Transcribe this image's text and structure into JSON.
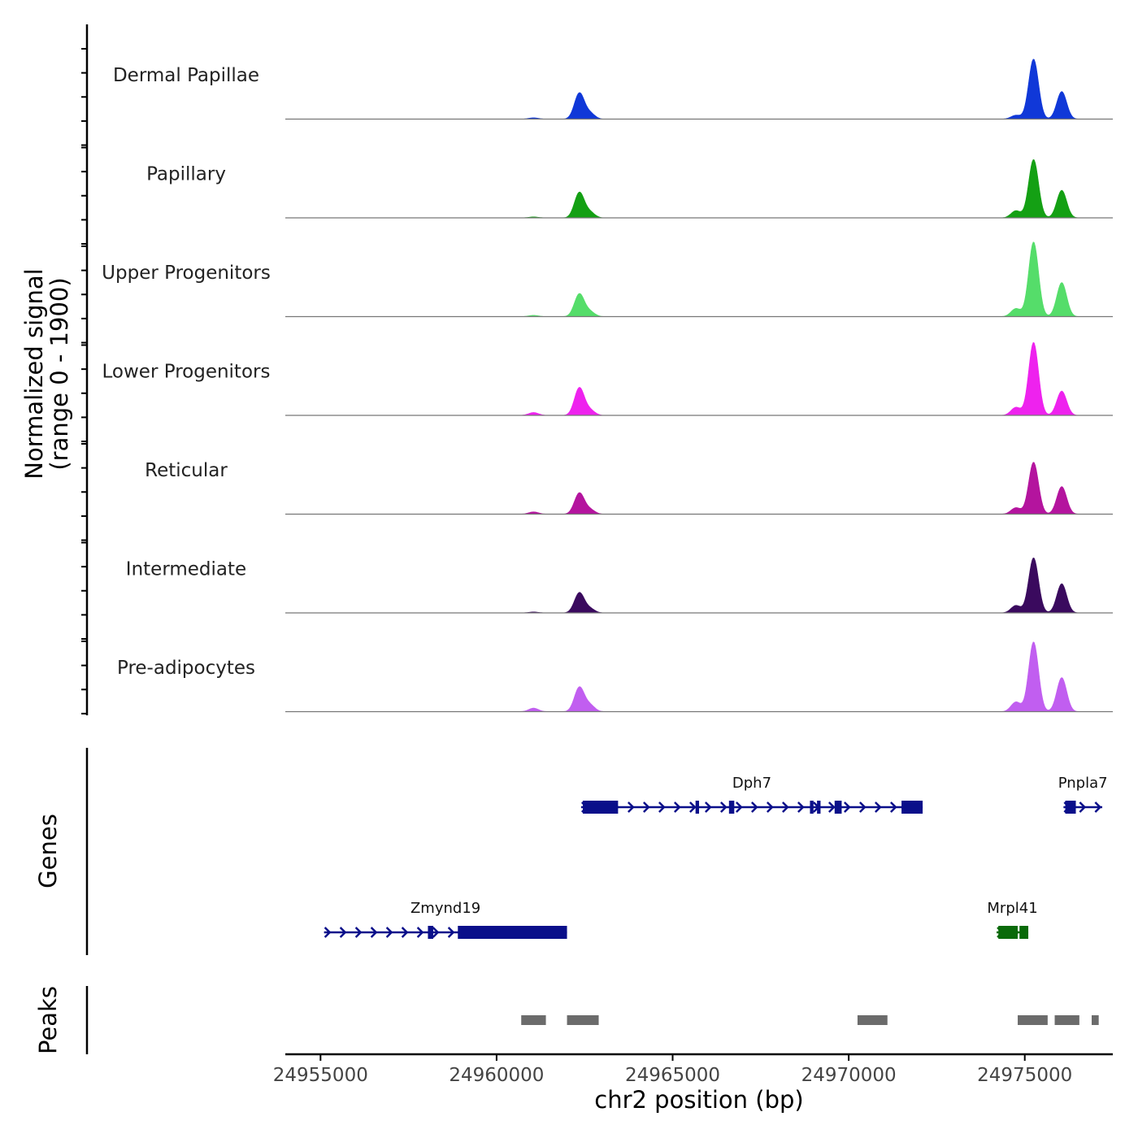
{
  "chart_data": {
    "type": "area",
    "title": "",
    "xlabel": "chr2 position (bp)",
    "ylabel_line1": "Normalized signal",
    "ylabel_line2": "(range 0 - 1900)",
    "y_range": [
      0,
      1900
    ],
    "xlim": [
      24954000,
      24977500
    ],
    "x_ticks": [
      24955000,
      24960000,
      24965000,
      24970000,
      24975000
    ],
    "x_tick_labels": [
      "24955000",
      "24960000",
      "24965000",
      "24970000",
      "24975000"
    ],
    "signal_tracks": [
      {
        "name": "Dermal Papillae",
        "color": "#1038d8",
        "peaks": [
          {
            "pos": 24962350,
            "value": 800
          },
          {
            "pos": 24962650,
            "value": 180
          },
          {
            "pos": 24961050,
            "value": 40
          },
          {
            "pos": 24974750,
            "value": 120
          },
          {
            "pos": 24975250,
            "value": 1850
          },
          {
            "pos": 24976050,
            "value": 850
          }
        ]
      },
      {
        "name": "Papillary",
        "color": "#14a014",
        "peaks": [
          {
            "pos": 24962350,
            "value": 780
          },
          {
            "pos": 24962650,
            "value": 170
          },
          {
            "pos": 24961050,
            "value": 30
          },
          {
            "pos": 24974750,
            "value": 220
          },
          {
            "pos": 24975250,
            "value": 1800
          },
          {
            "pos": 24976050,
            "value": 850
          }
        ]
      },
      {
        "name": "Upper Progenitors",
        "color": "#55dd6a",
        "peaks": [
          {
            "pos": 24962350,
            "value": 700
          },
          {
            "pos": 24962650,
            "value": 150
          },
          {
            "pos": 24961050,
            "value": 40
          },
          {
            "pos": 24974750,
            "value": 250
          },
          {
            "pos": 24975250,
            "value": 2300
          },
          {
            "pos": 24976050,
            "value": 1050
          }
        ]
      },
      {
        "name": "Lower Progenitors",
        "color": "#ee22ee",
        "peaks": [
          {
            "pos": 24962350,
            "value": 850
          },
          {
            "pos": 24962650,
            "value": 160
          },
          {
            "pos": 24961050,
            "value": 90
          },
          {
            "pos": 24974750,
            "value": 250
          },
          {
            "pos": 24975250,
            "value": 2250
          },
          {
            "pos": 24976050,
            "value": 750
          }
        ]
      },
      {
        "name": "Reticular",
        "color": "#b4149e",
        "peaks": [
          {
            "pos": 24962350,
            "value": 650
          },
          {
            "pos": 24962650,
            "value": 140
          },
          {
            "pos": 24961050,
            "value": 70
          },
          {
            "pos": 24974750,
            "value": 200
          },
          {
            "pos": 24975250,
            "value": 1600
          },
          {
            "pos": 24976050,
            "value": 850
          }
        ]
      },
      {
        "name": "Intermediate",
        "color": "#3a0a5e",
        "peaks": [
          {
            "pos": 24962350,
            "value": 620
          },
          {
            "pos": 24962650,
            "value": 130
          },
          {
            "pos": 24961050,
            "value": 30
          },
          {
            "pos": 24974750,
            "value": 230
          },
          {
            "pos": 24975250,
            "value": 1700
          },
          {
            "pos": 24976050,
            "value": 900
          }
        ]
      },
      {
        "name": "Pre-adipocytes",
        "color": "#c15ef0",
        "peaks": [
          {
            "pos": 24962350,
            "value": 750
          },
          {
            "pos": 24962650,
            "value": 200
          },
          {
            "pos": 24961050,
            "value": 110
          },
          {
            "pos": 24974750,
            "value": 300
          },
          {
            "pos": 24975250,
            "value": 2150
          },
          {
            "pos": 24976050,
            "value": 1050
          }
        ]
      }
    ],
    "genes_track_label": "Genes",
    "genes": [
      {
        "name": "Dph7",
        "row": 1,
        "strand": "+",
        "color": "#0a0f8a",
        "start": 24962400,
        "end": 24972100,
        "exons": [
          [
            24962450,
            24963450
          ],
          [
            24965650,
            24965750
          ],
          [
            24966600,
            24966750
          ],
          [
            24968900,
            24969000
          ],
          [
            24969100,
            24969200
          ],
          [
            24969600,
            24969800
          ],
          [
            24971500,
            24972100
          ]
        ]
      },
      {
        "name": "Pnpla7",
        "row": 1,
        "strand": "+",
        "color": "#0a0f8a",
        "start": 24976100,
        "end": 24977200,
        "exons": [
          [
            24976150,
            24976450
          ]
        ]
      },
      {
        "name": "Zmynd19",
        "row": 2,
        "strand": "+",
        "color": "#0a0f8a",
        "start": 24955100,
        "end": 24962000,
        "exons": [
          [
            24958050,
            24958200
          ],
          [
            24958900,
            24962000
          ]
        ]
      },
      {
        "name": "Mrpl41",
        "row": 2,
        "strand": "+",
        "color": "#0a6a0a",
        "start": 24974200,
        "end": 24975100,
        "exons": [
          [
            24974250,
            24974800
          ],
          [
            24974850,
            24975100
          ]
        ]
      }
    ],
    "peaks_track_label": "Peaks",
    "peak_color": "#6b6b6b",
    "peak_regions": [
      [
        24960700,
        24961400
      ],
      [
        24962000,
        24962900
      ],
      [
        24970250,
        24971100
      ],
      [
        24974800,
        24975650
      ],
      [
        24975850,
        24976550
      ],
      [
        24976900,
        24977100
      ]
    ]
  }
}
